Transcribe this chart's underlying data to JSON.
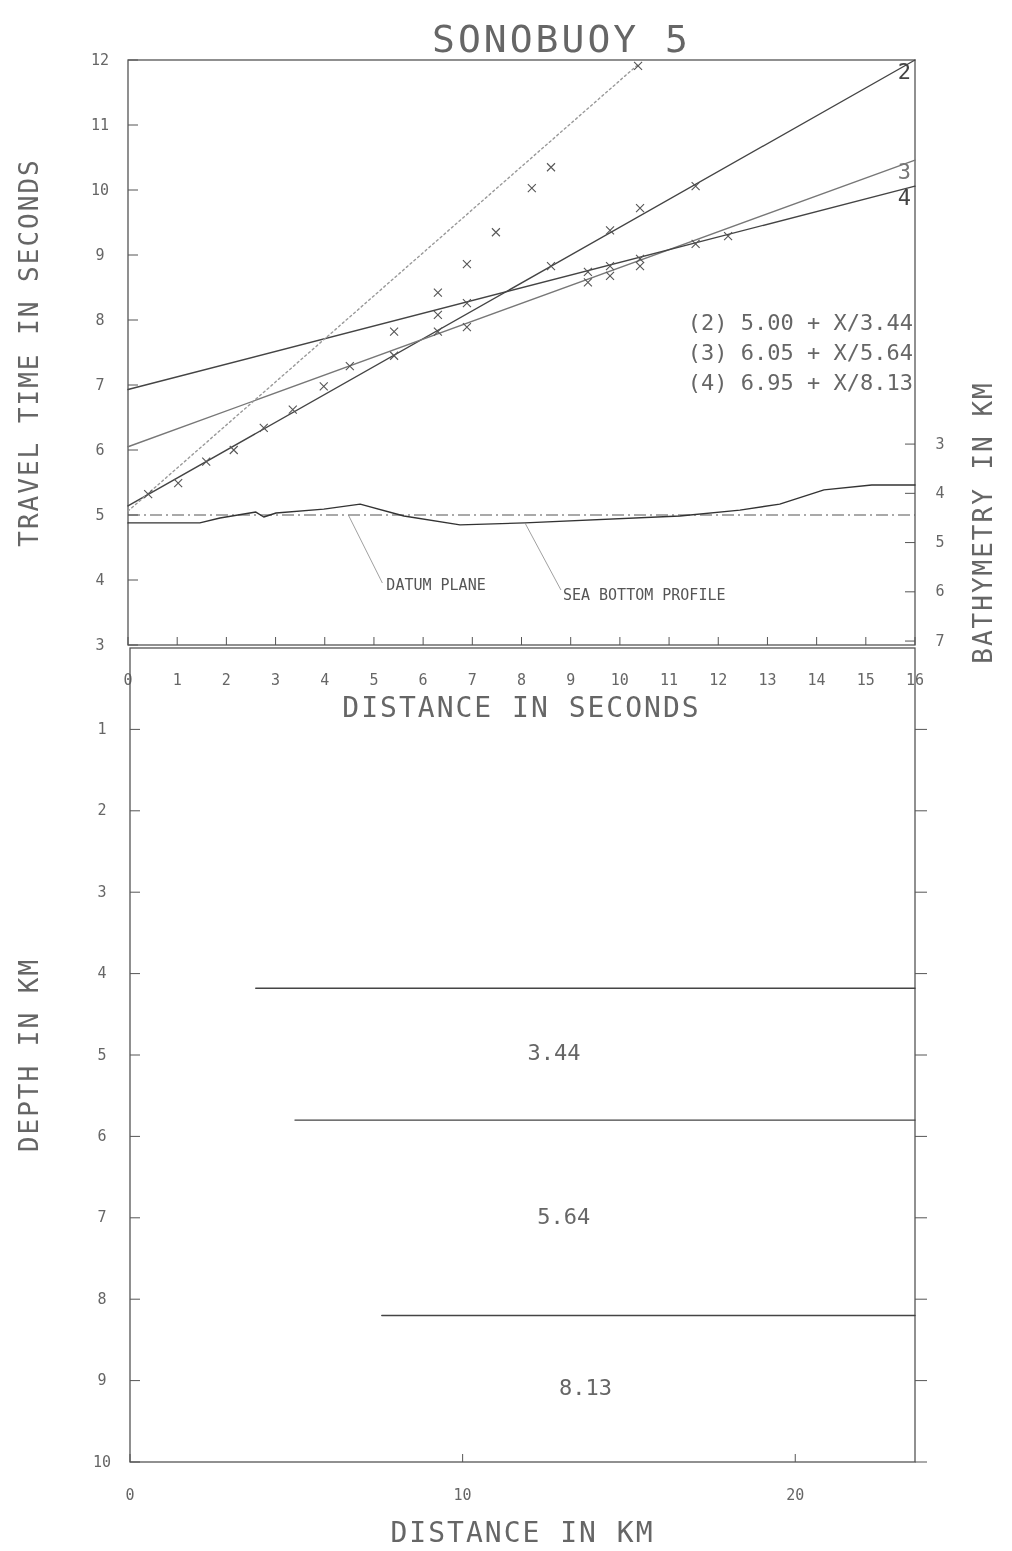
{
  "chart_data": [
    {
      "type": "line",
      "title": "SONOBUOY 5",
      "xlabel": "DISTANCE IN SECONDS",
      "ylabel": "TRAVEL TIME IN SECONDS",
      "y2label": "BATHYMETRY IN KM",
      "xlim": [
        0,
        16
      ],
      "xticks": [
        0,
        1,
        2,
        3,
        4,
        5,
        6,
        7,
        8,
        9,
        10,
        11,
        12,
        13,
        14,
        15,
        16
      ],
      "ylim": [
        3,
        12
      ],
      "yticks": [
        3,
        4,
        5,
        6,
        7,
        8,
        9,
        10,
        11,
        12
      ],
      "y2lim": [
        7.08,
        -4.8
      ],
      "y2ticks": [
        3,
        4,
        5,
        6,
        7
      ],
      "annotations": [
        "(2) 5.00 + X/3.44",
        "(3) 6.05 + X/5.64",
        "(4) 6.95 + X/8.13"
      ],
      "ref_lines": [
        {
          "axis": "y",
          "value": 5.0,
          "label": "DATUM PLANE",
          "color": "#555555",
          "line_style": "dashed"
        }
      ],
      "series": [
        {
          "name": "2",
          "color": "#444444",
          "line_style": "solid",
          "x": [
            0,
            16
          ],
          "values": [
            5.14,
            12
          ]
        },
        {
          "name": "3",
          "color": "#777777",
          "line_style": "solid",
          "x": [
            0,
            16
          ],
          "values": [
            6.05,
            10.46
          ]
        },
        {
          "name": "4",
          "color": "#444444",
          "line_style": "solid",
          "x": [
            0,
            16
          ],
          "values": [
            6.93,
            10.06
          ]
        },
        {
          "color": "#999999",
          "line_style": "dotted",
          "x": [
            0,
            10.4
          ],
          "values": [
            5.06,
            11.95
          ]
        },
        {
          "type": "scatter",
          "color": "#555555",
          "marker": "cross",
          "x": [
            0.41,
            1.02,
            1.59,
            2.15,
            2.76,
            3.35,
            3.98,
            4.51,
            5.41,
            6.3,
            6.89,
            7.48,
            8.21,
            8.6,
            10.37,
            5.41,
            6.3,
            6.89,
            8.6,
            9.8,
            10.41,
            11.54,
            6.3,
            6.89,
            9.35,
            9.8,
            10.41,
            11.54,
            12.2,
            9.35,
            9.8,
            10.41
          ],
          "values": [
            5.32,
            5.49,
            5.82,
            6.0,
            6.34,
            6.62,
            6.98,
            7.29,
            7.82,
            8.42,
            8.86,
            9.35,
            10.03,
            10.35,
            11.91,
            7.45,
            7.82,
            7.89,
            8.83,
            9.38,
            9.72,
            10.06,
            8.08,
            8.26,
            8.74,
            8.83,
            8.94,
            9.17,
            9.29,
            8.58,
            8.68,
            8.83
          ]
        },
        {
          "name": "SEA BOTTOM PROFILE",
          "axis": "y2",
          "color": "#333333",
          "line_style": "solid",
          "x": [
            0,
            1.46,
            1.87,
            2.6,
            2.76,
            3.01,
            3.98,
            4.72,
            5.61,
            6.75,
            8.07,
            11.22,
            12.44,
            13.25,
            14.15,
            15.12,
            16
          ],
          "values": [
            4.6,
            4.6,
            4.5,
            4.38,
            4.48,
            4.4,
            4.32,
            4.22,
            4.46,
            4.64,
            4.6,
            4.46,
            4.34,
            4.22,
            3.93,
            3.83,
            3.83
          ]
        }
      ]
    },
    {
      "type": "line",
      "xlabel": "DISTANCE IN KM",
      "ylabel": "DEPTH IN KM",
      "xlim": [
        0,
        23.6
      ],
      "xticks": [
        0,
        10,
        20
      ],
      "ylim": [
        10,
        0
      ],
      "yticks": [
        1,
        2,
        3,
        4,
        5,
        6,
        7,
        8,
        9,
        10
      ],
      "annotations": [
        "3.44",
        "5.64",
        "8.13"
      ],
      "series": [
        {
          "color": "#444444",
          "line_style": "solid",
          "x": [
            3.78,
            23.6
          ],
          "values": [
            4.18,
            4.18
          ]
        },
        {
          "color": "#444444",
          "line_style": "solid",
          "x": [
            4.96,
            23.6
          ],
          "values": [
            5.8,
            5.8
          ]
        },
        {
          "color": "#444444",
          "line_style": "solid",
          "x": [
            7.57,
            23.6
          ],
          "values": [
            8.2,
            8.2
          ]
        }
      ]
    }
  ]
}
